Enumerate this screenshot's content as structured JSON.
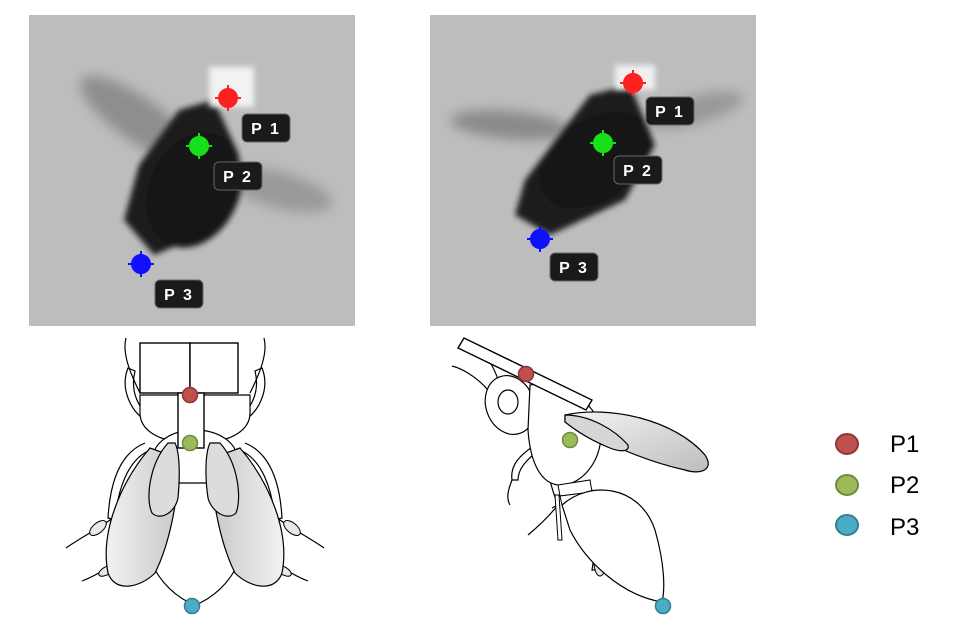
{
  "points": [
    {
      "label": "P1",
      "marker_color": "#ff2020",
      "legend_color": "#c0504d"
    },
    {
      "label": "P2",
      "marker_color": "#18e018",
      "legend_color": "#9bbb59"
    },
    {
      "label": "P3",
      "marker_color": "#1010ff",
      "legend_color": "#4bacc6"
    }
  ],
  "photos": {
    "top_view": {
      "tags": [
        "P 1",
        "P 2",
        "P 3"
      ]
    },
    "side_view": {
      "tags": [
        "P 1",
        "P 2",
        "P 3"
      ]
    }
  },
  "legend": {
    "items": [
      "P1",
      "P2",
      "P3"
    ]
  }
}
